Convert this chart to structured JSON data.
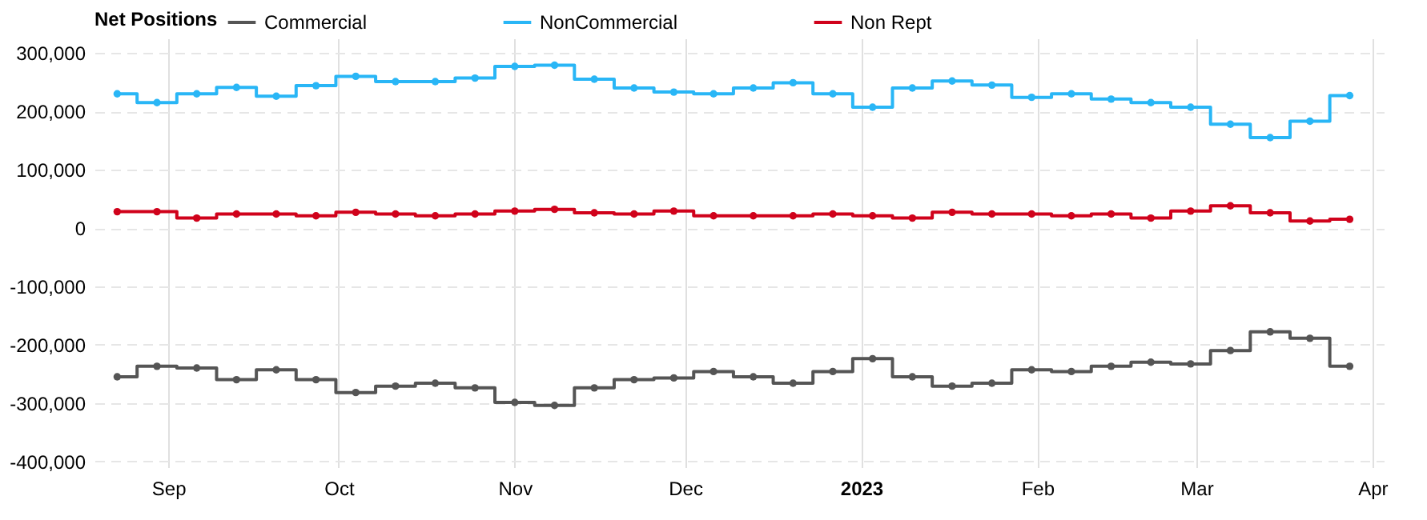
{
  "chart_data": {
    "type": "step",
    "legend_title": "Net Positions",
    "x": [
      "2022-08-23",
      "2022-08-30",
      "2022-09-06",
      "2022-09-13",
      "2022-09-20",
      "2022-09-27",
      "2022-10-04",
      "2022-10-11",
      "2022-10-18",
      "2022-10-25",
      "2022-11-01",
      "2022-11-08",
      "2022-11-15",
      "2022-11-22",
      "2022-11-29",
      "2022-12-06",
      "2022-12-13",
      "2022-12-20",
      "2022-12-27",
      "2023-01-03",
      "2023-01-10",
      "2023-01-17",
      "2023-01-24",
      "2023-01-31",
      "2023-02-07",
      "2023-02-14",
      "2023-02-21",
      "2023-02-28",
      "2023-03-07",
      "2023-03-14",
      "2023-03-21",
      "2023-03-28"
    ],
    "series": [
      {
        "name": "Commercial",
        "color": "#555555",
        "values": [
          -255000,
          -237000,
          -240000,
          -260000,
          -243000,
          -260000,
          -282000,
          -271000,
          -266000,
          -274000,
          -299000,
          -304000,
          -274000,
          -260000,
          -257000,
          -246000,
          -255000,
          -266000,
          -246000,
          -224000,
          -255000,
          -271000,
          -266000,
          -243000,
          -246000,
          -237000,
          -230000,
          -233000,
          -210000,
          -178000,
          -189000,
          -237000
        ]
      },
      {
        "name": "NonCommercial",
        "color": "#29b6f6",
        "values": [
          230000,
          215000,
          230000,
          241000,
          226000,
          244000,
          260000,
          251000,
          251000,
          257000,
          277000,
          279000,
          255000,
          240000,
          233000,
          230000,
          240000,
          249000,
          230000,
          207000,
          240000,
          252000,
          245000,
          224000,
          230000,
          221000,
          215000,
          207000,
          178000,
          155000,
          183000,
          227000
        ]
      },
      {
        "name": "Non Rept",
        "color": "#d0021b",
        "values": [
          28000,
          28000,
          17000,
          24000,
          24000,
          21000,
          27000,
          24000,
          21000,
          24000,
          29000,
          32000,
          26000,
          24000,
          29000,
          21000,
          21000,
          21000,
          24000,
          21000,
          17000,
          27000,
          24000,
          24000,
          21000,
          24000,
          17000,
          29000,
          38000,
          26000,
          12000,
          15000
        ]
      }
    ],
    "xlim": [
      "2022-08-19",
      "2023-04-03"
    ],
    "xticks": [
      {
        "value": "2022-09-01",
        "label": "Sep"
      },
      {
        "value": "2022-10-01",
        "label": "Oct"
      },
      {
        "value": "2022-11-01",
        "label": "Nov"
      },
      {
        "value": "2022-12-01",
        "label": "Dec"
      },
      {
        "value": "2023-01-01",
        "label": "2023"
      },
      {
        "value": "2023-02-01",
        "label": "Feb"
      },
      {
        "value": "2023-03-01",
        "label": "Mar"
      },
      {
        "value": "2023-04-01",
        "label": "Apr"
      }
    ],
    "ylim": [
      -410000,
      325000
    ],
    "yticks": [
      {
        "value": -400000,
        "label": "-400,000"
      },
      {
        "value": -300000,
        "label": "-300,000"
      },
      {
        "value": -200000,
        "label": "-200,000"
      },
      {
        "value": -100000,
        "label": "-100,000"
      },
      {
        "value": 0,
        "label": "0"
      },
      {
        "value": 100000,
        "label": "100,000"
      },
      {
        "value": 200000,
        "label": "200,000"
      },
      {
        "value": 300000,
        "label": "300,000"
      }
    ],
    "grid": true,
    "legend": "top left",
    "marker": "circle",
    "line_style": "solid"
  }
}
